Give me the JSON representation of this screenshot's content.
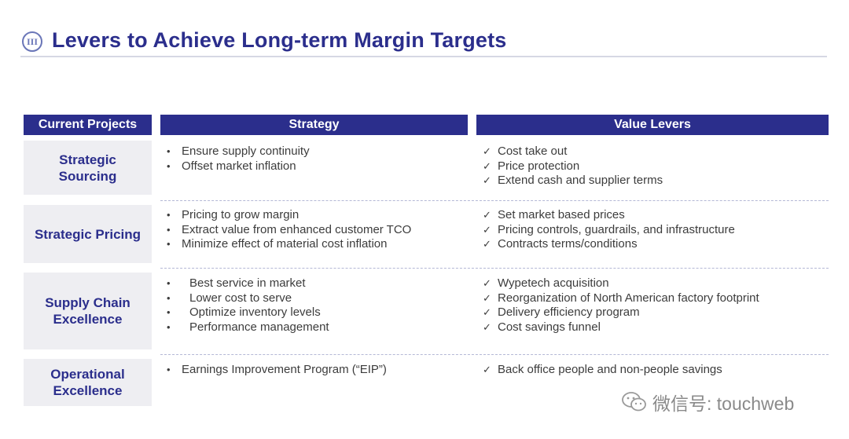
{
  "title": "Levers to Achieve Long-term Margin Targets",
  "section_badge": "III",
  "headers": {
    "projects": "Current Projects",
    "strategy": "Strategy",
    "value_levers": "Value Levers"
  },
  "rows": [
    {
      "project": "Strategic Sourcing",
      "strategy": [
        "Ensure supply continuity",
        "Offset market inflation"
      ],
      "value_levers": [
        "Cost take out",
        "Price protection",
        "Extend cash and supplier terms"
      ]
    },
    {
      "project": "Strategic Pricing",
      "strategy": [
        "Pricing to grow margin",
        "Extract value from enhanced customer TCO",
        "Minimize effect of material cost inflation"
      ],
      "value_levers": [
        "Set market based prices",
        "Pricing controls, guardrails, and infrastructure",
        "Contracts terms/conditions"
      ]
    },
    {
      "project": "Supply Chain Excellence",
      "strategy": [
        "Best service in market",
        "Lower cost to serve",
        "Optimize inventory levels",
        "Performance management"
      ],
      "value_levers": [
        "Wypetech acquisition",
        "Reorganization of North American factory footprint",
        "Delivery efficiency program",
        "Cost savings funnel"
      ]
    },
    {
      "project": "Operational Excellence",
      "strategy": [
        "Earnings Improvement Program (“EIP”)"
      ],
      "value_levers": [
        "Back office people and non-people savings"
      ]
    }
  ],
  "watermark": {
    "icon": "wechat-icon",
    "text": "微信号: touchweb"
  },
  "colors": {
    "navy": "#2b2e8c",
    "cell_bg": "#eeeef2",
    "separator": "#b4b8d6"
  }
}
